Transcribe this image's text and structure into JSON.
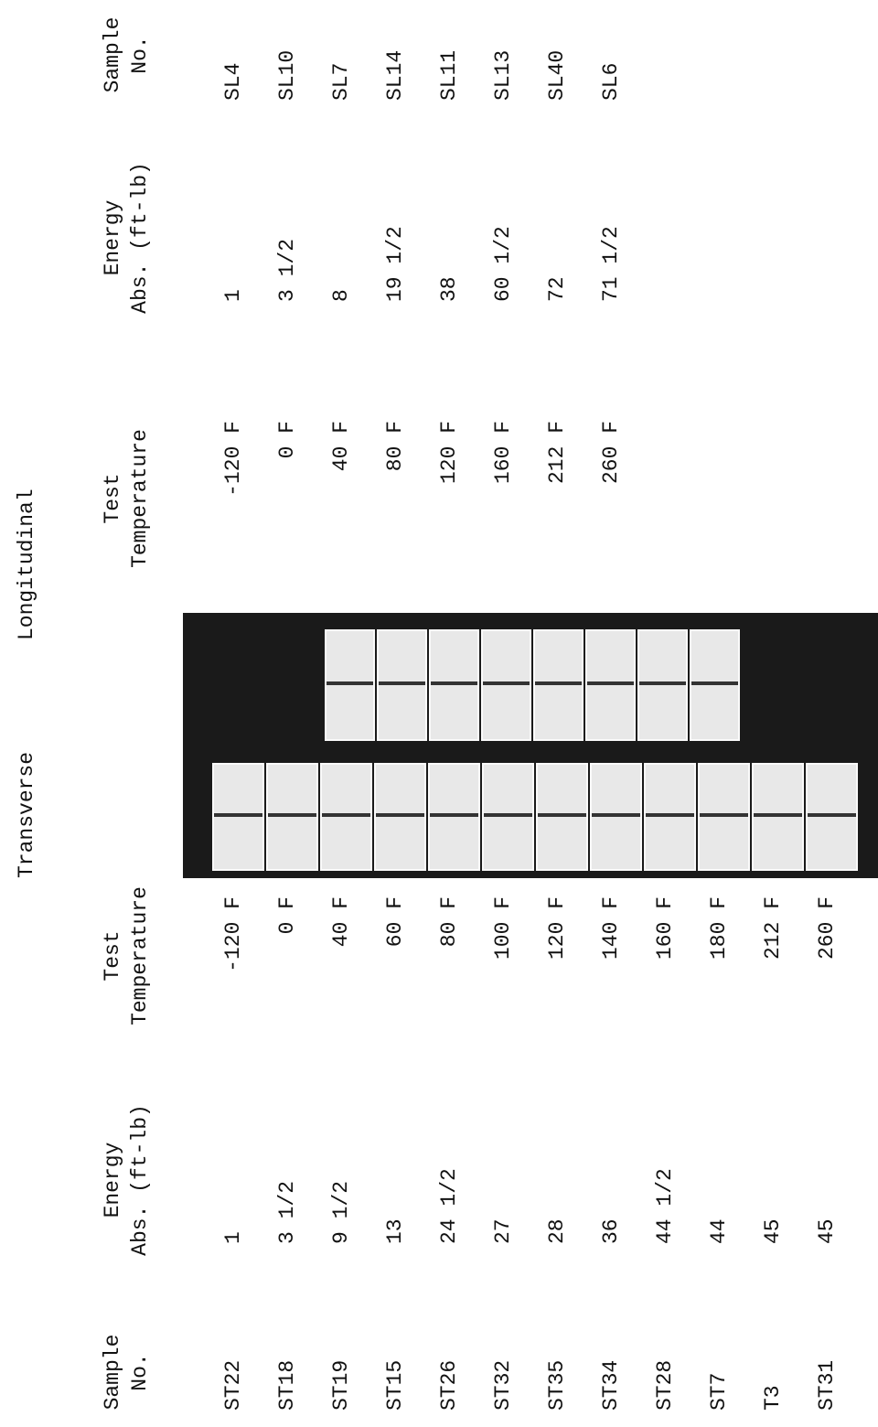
{
  "headings": {
    "left": "Transverse",
    "right": "Longitudinal"
  },
  "transverse": {
    "columns": [
      [
        "Sample",
        "No."
      ],
      [
        "Energy",
        "Abs. (ft-lb)"
      ],
      [
        "Test",
        "Temperature"
      ]
    ],
    "rows": [
      [
        "ST22",
        "1",
        "-120 F"
      ],
      [
        "ST18",
        "3 1/2",
        "0 F"
      ],
      [
        "ST19",
        "9 1/2",
        "40 F"
      ],
      [
        "ST15",
        "13",
        "60 F"
      ],
      [
        "ST26",
        "24 1/2",
        "80 F"
      ],
      [
        "ST32",
        "27",
        "100 F"
      ],
      [
        "ST35",
        "28",
        "120 F"
      ],
      [
        "ST34",
        "36",
        "140 F"
      ],
      [
        "ST28",
        "44 1/2",
        "160 F"
      ],
      [
        "ST7",
        "44",
        "180 F"
      ],
      [
        "T3",
        "45",
        "212 F"
      ],
      [
        "ST31",
        "45",
        "260 F"
      ]
    ]
  },
  "longitudinal": {
    "columns": [
      [
        "Test",
        "Temperature"
      ],
      [
        "Energy",
        "Abs. (ft-lb)"
      ],
      [
        "Sample",
        "No."
      ]
    ],
    "rows": [
      [
        "-120 F",
        "1",
        "SL4"
      ],
      [
        "0 F",
        "3 1/2",
        "SL10"
      ],
      [
        "40 F",
        "8",
        "SL7"
      ],
      [
        "80 F",
        "19 1/2",
        "SL14"
      ],
      [
        "120 F",
        "38",
        "SL11"
      ],
      [
        "160 F",
        "60 1/2",
        "SL13"
      ],
      [
        "212 F",
        "72",
        "SL40"
      ],
      [
        "260 F",
        "71 1/2",
        "SL6"
      ]
    ]
  }
}
